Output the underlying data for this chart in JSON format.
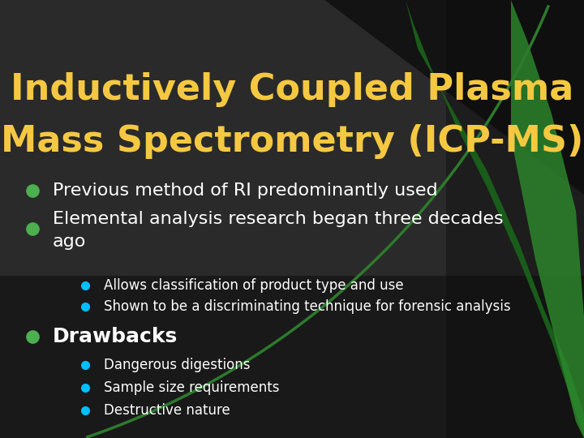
{
  "title_line1": "Inductively Coupled Plasma",
  "title_line2": "Mass Spectrometry (ICP-MS)",
  "title_color": "#F5C842",
  "background_color": "#1a1a1a",
  "text_color": "#ffffff",
  "bullet_color_main": "#4CAF50",
  "bullet_color_sub": "#00BFFF",
  "main_bullets": [
    "Previous method of RI predominantly used",
    "Elemental analysis research began three decades ago"
  ],
  "sub_bullets_2": [
    "Allows classification of product type and use",
    "Shown to be a discriminating technique for forensic analysis"
  ],
  "main_bullet_3": "Drawbacks",
  "sub_bullets_3": [
    "Dangerous digestions",
    "Sample size requirements",
    "Destructive nature"
  ],
  "figsize": [
    7.2,
    5.4
  ],
  "dpi": 100
}
